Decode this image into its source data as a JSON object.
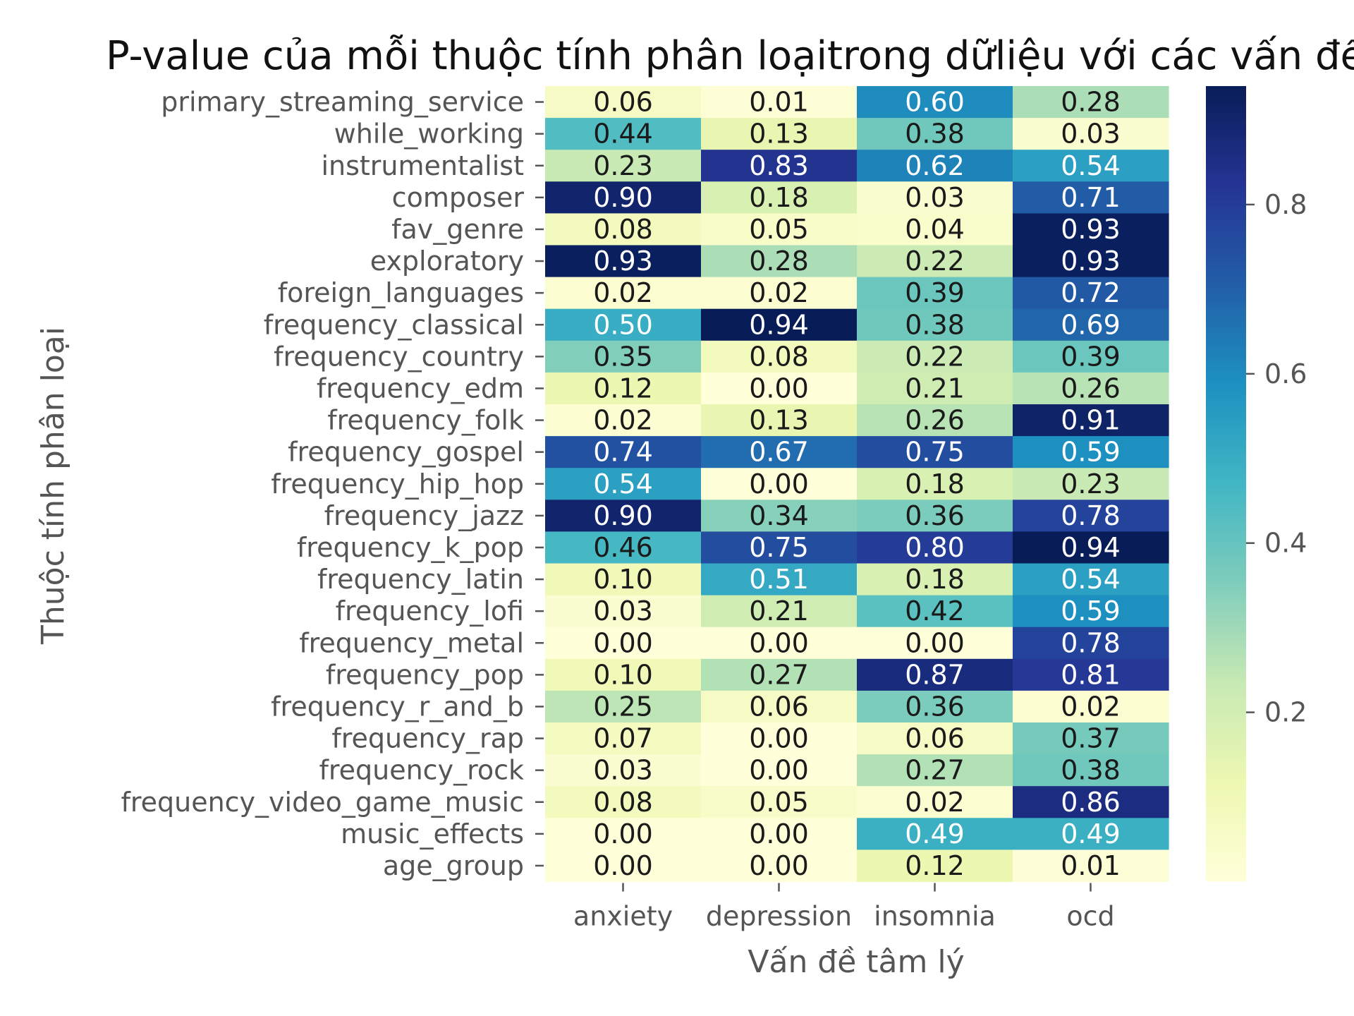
{
  "chart_data": {
    "type": "heatmap",
    "title": "P-value của mỗi thuộc tính phân loạitrong dữliệu với các vấn đề tâm lý",
    "xlabel": "Vấn đề tâm lý",
    "ylabel": "Thuộc tính phân loại",
    "columns": [
      "anxiety",
      "depression",
      "insomnia",
      "ocd"
    ],
    "rows": [
      "primary_streaming_service",
      "while_working",
      "instrumentalist",
      "composer",
      "fav_genre",
      "exploratory",
      "foreign_languages",
      "frequency_classical",
      "frequency_country",
      "frequency_edm",
      "frequency_folk",
      "frequency_gospel",
      "frequency_hip_hop",
      "frequency_jazz",
      "frequency_k_pop",
      "frequency_latin",
      "frequency_lofi",
      "frequency_metal",
      "frequency_pop",
      "frequency_r_and_b",
      "frequency_rap",
      "frequency_rock",
      "frequency_video_game_music",
      "music_effects",
      "age_group"
    ],
    "values": [
      [
        0.06,
        0.01,
        0.6,
        0.28
      ],
      [
        0.44,
        0.13,
        0.38,
        0.03
      ],
      [
        0.23,
        0.83,
        0.62,
        0.54
      ],
      [
        0.9,
        0.18,
        0.03,
        0.71
      ],
      [
        0.08,
        0.05,
        0.04,
        0.93
      ],
      [
        0.93,
        0.28,
        0.22,
        0.93
      ],
      [
        0.02,
        0.02,
        0.39,
        0.72
      ],
      [
        0.5,
        0.94,
        0.38,
        0.69
      ],
      [
        0.35,
        0.08,
        0.22,
        0.39
      ],
      [
        0.12,
        0.0,
        0.21,
        0.26
      ],
      [
        0.02,
        0.13,
        0.26,
        0.91
      ],
      [
        0.74,
        0.67,
        0.75,
        0.59
      ],
      [
        0.54,
        0.0,
        0.18,
        0.23
      ],
      [
        0.9,
        0.34,
        0.36,
        0.78
      ],
      [
        0.46,
        0.75,
        0.8,
        0.94
      ],
      [
        0.1,
        0.51,
        0.18,
        0.54
      ],
      [
        0.03,
        0.21,
        0.42,
        0.59
      ],
      [
        0.0,
        0.0,
        0.0,
        0.78
      ],
      [
        0.1,
        0.27,
        0.87,
        0.81
      ],
      [
        0.25,
        0.06,
        0.36,
        0.02
      ],
      [
        0.07,
        0.0,
        0.06,
        0.37
      ],
      [
        0.03,
        0.0,
        0.27,
        0.38
      ],
      [
        0.08,
        0.05,
        0.02,
        0.86
      ],
      [
        0.0,
        0.0,
        0.49,
        0.49
      ],
      [
        0.0,
        0.0,
        0.12,
        0.01
      ]
    ],
    "colorbar": {
      "colormap": "YlGnBu",
      "vmin": 0.0,
      "vmax": 0.94,
      "ticks": [
        0.2,
        0.4,
        0.6,
        0.8
      ],
      "tick_labels": [
        "0.2",
        "0.4",
        "0.6",
        "0.8"
      ]
    },
    "grid": false,
    "legend": "colorbar-right",
    "colors": {
      "text_dark": "#1a1a1a",
      "text_light": "#ffffff",
      "axis_text": "#555555"
    }
  }
}
